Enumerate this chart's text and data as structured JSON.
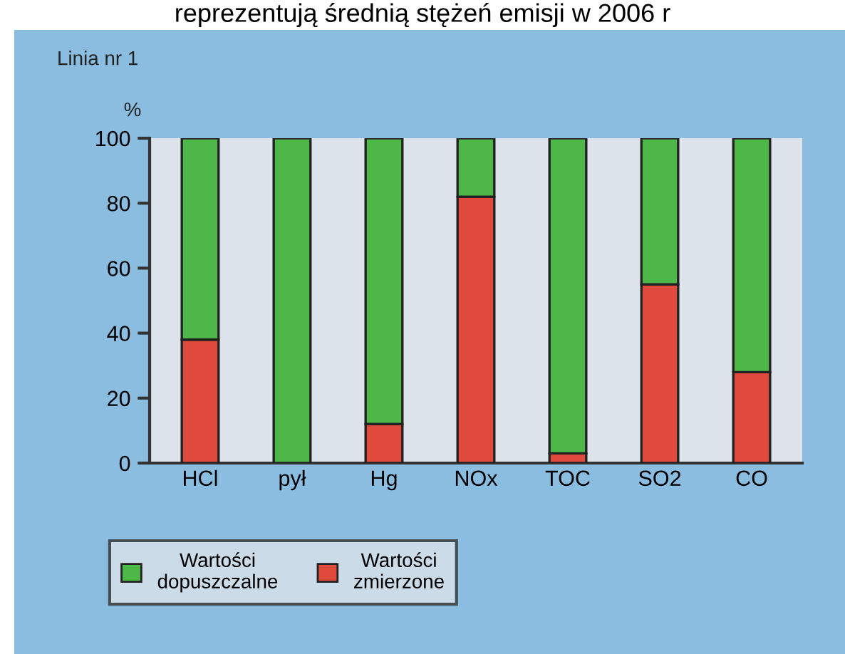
{
  "chart_data": {
    "type": "bar",
    "stacked": true,
    "title": "Linia nr 1",
    "ylabel": "%",
    "annotations": [
      "reprezentują średnią stężeń emisji w 2006 r"
    ],
    "categories": [
      "HCl",
      "pył",
      "Hg",
      "NOx",
      "TOC",
      "SO2",
      "CO"
    ],
    "series": [
      {
        "name": "Wartości\nzmierzone",
        "color": "#e04a3c",
        "values": [
          38,
          0,
          12,
          82,
          3,
          55,
          28
        ]
      },
      {
        "name": "Wartości\ndopuszczalne",
        "color": "#4db848",
        "values": [
          62,
          100,
          88,
          18,
          97,
          45,
          72
        ]
      }
    ],
    "ylim": [
      0,
      100
    ],
    "yticks": [
      0,
      20,
      40,
      60,
      80,
      100
    ],
    "grid": false,
    "legend": "bottom left"
  }
}
